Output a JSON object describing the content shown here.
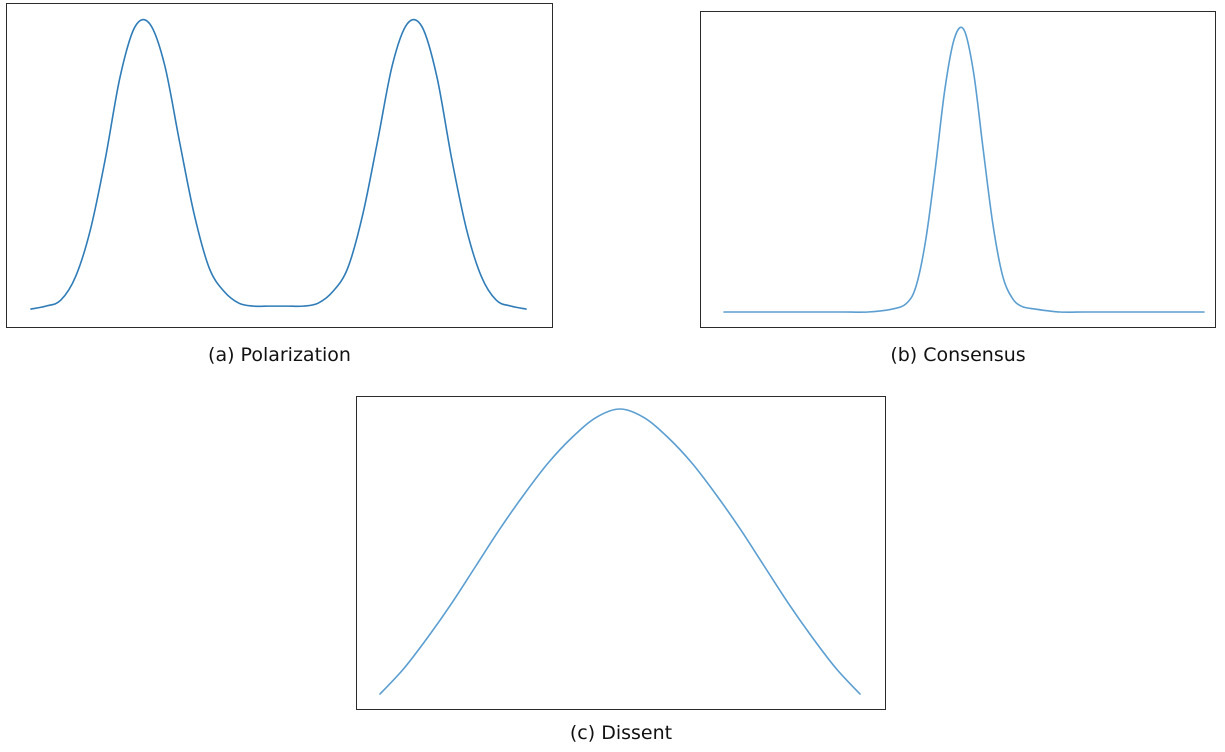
{
  "chart_data": [
    {
      "id": "a",
      "type": "line",
      "title": "",
      "caption": "(a)  Polarization",
      "xlabel": "",
      "ylabel": "",
      "axes_visible": false,
      "grid": false,
      "line_color": "#2f7cb8",
      "series": [
        {
          "x": [
            0,
            0.03,
            0.06,
            0.09,
            0.12,
            0.15,
            0.18,
            0.21,
            0.24,
            0.27,
            0.3,
            0.33,
            0.36,
            0.39,
            0.42,
            0.45,
            0.48,
            0.5,
            0.52,
            0.55,
            0.58,
            0.61,
            0.64,
            0.67,
            0.7,
            0.73,
            0.76,
            0.79,
            0.82,
            0.85,
            0.88,
            0.91,
            0.94,
            0.97,
            1.0
          ],
          "y": [
            0.01,
            0.02,
            0.04,
            0.12,
            0.28,
            0.52,
            0.8,
            0.97,
            0.98,
            0.84,
            0.58,
            0.33,
            0.15,
            0.07,
            0.03,
            0.02,
            0.02,
            0.02,
            0.02,
            0.02,
            0.03,
            0.07,
            0.15,
            0.33,
            0.58,
            0.84,
            0.98,
            0.97,
            0.8,
            0.52,
            0.28,
            0.12,
            0.04,
            0.02,
            0.01
          ]
        }
      ],
      "ylim": [
        0,
        1
      ]
    },
    {
      "id": "b",
      "type": "line",
      "title": "",
      "caption": "(b) Consensus",
      "xlabel": "",
      "ylabel": "",
      "axes_visible": false,
      "grid": false,
      "line_color": "#5b9ed1",
      "series": [
        {
          "x": [
            0,
            0.05,
            0.1,
            0.15,
            0.2,
            0.25,
            0.3,
            0.35,
            0.38,
            0.4,
            0.42,
            0.44,
            0.46,
            0.48,
            0.5,
            0.52,
            0.54,
            0.56,
            0.58,
            0.6,
            0.62,
            0.65,
            0.7,
            0.75,
            0.8,
            0.85,
            0.9,
            0.95,
            1.0
          ],
          "y": [
            0.0,
            0.0,
            0.0,
            0.0,
            0.0,
            0.0,
            0.0,
            0.01,
            0.03,
            0.09,
            0.25,
            0.5,
            0.78,
            0.96,
            0.99,
            0.84,
            0.57,
            0.31,
            0.13,
            0.05,
            0.02,
            0.01,
            0.0,
            0.0,
            0.0,
            0.0,
            0.0,
            0.0,
            0.0
          ]
        }
      ],
      "ylim": [
        0,
        1
      ]
    },
    {
      "id": "c",
      "type": "line",
      "title": "",
      "caption": "(c) Dissent",
      "xlabel": "",
      "ylabel": "",
      "axes_visible": false,
      "grid": false,
      "line_color": "#5b9ed1",
      "series": [
        {
          "x": [
            0,
            0.05,
            0.1,
            0.15,
            0.2,
            0.25,
            0.3,
            0.35,
            0.4,
            0.45,
            0.5,
            0.55,
            0.6,
            0.65,
            0.7,
            0.75,
            0.8,
            0.85,
            0.9,
            0.95,
            1.0
          ],
          "y": [
            0.0,
            0.09,
            0.2,
            0.32,
            0.45,
            0.58,
            0.7,
            0.81,
            0.9,
            0.97,
            1.0,
            0.97,
            0.9,
            0.81,
            0.7,
            0.58,
            0.45,
            0.32,
            0.2,
            0.09,
            0.0
          ]
        }
      ],
      "ylim": [
        0,
        1
      ]
    }
  ]
}
